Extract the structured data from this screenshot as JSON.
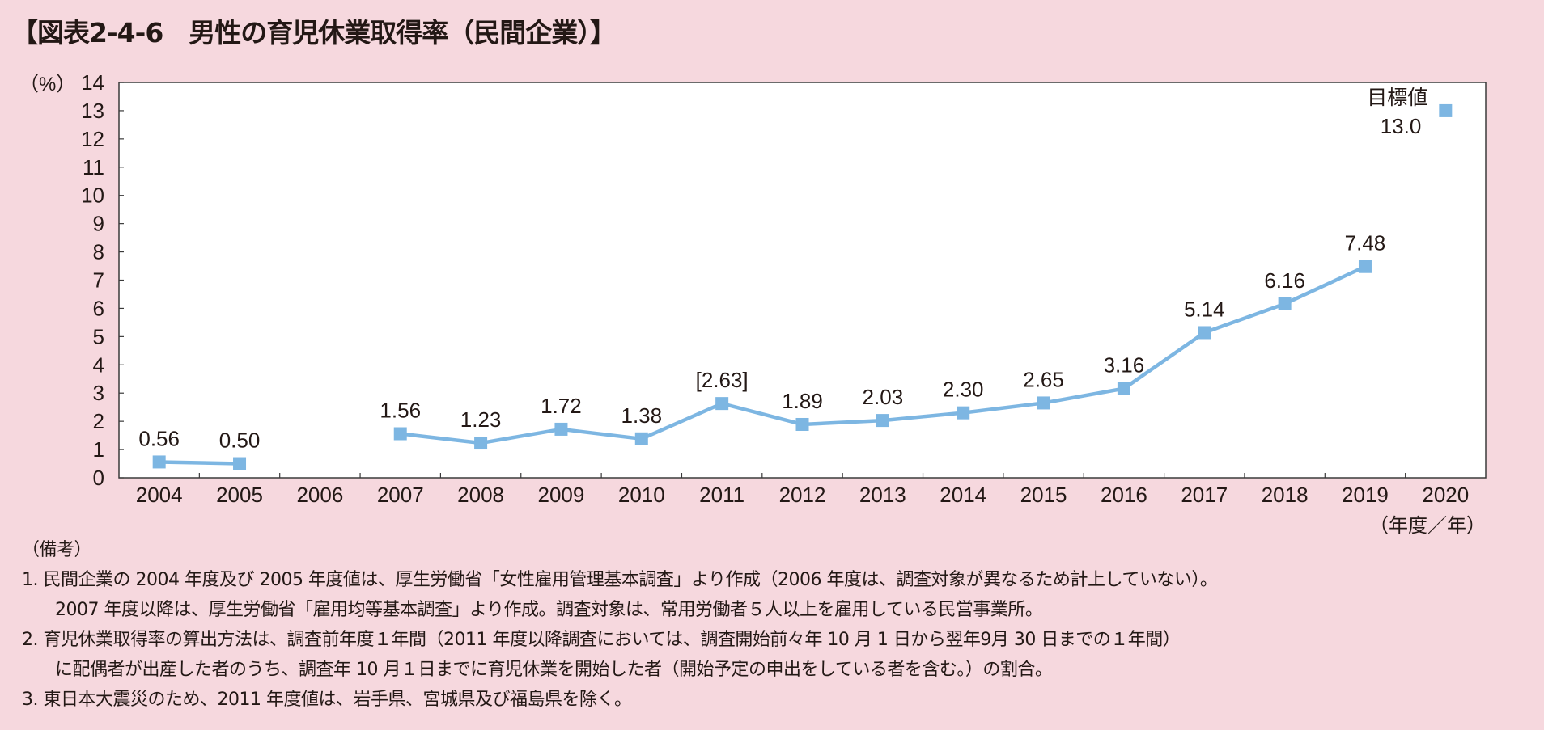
{
  "title": "【図表2-4-6　男性の育児休業取得率（民間企業）】",
  "chart_data": {
    "type": "line",
    "title": "男性の育児休業取得率（民間企業）",
    "ylabel": "（%）",
    "xlabel": "（年度／年）",
    "ylim": [
      0,
      14
    ],
    "yticks": [
      "0",
      "1",
      "2",
      "3",
      "4",
      "5",
      "6",
      "7",
      "8",
      "9",
      "10",
      "11",
      "12",
      "13",
      "14"
    ],
    "categories": [
      "2004",
      "2005",
      "2006",
      "2007",
      "2008",
      "2009",
      "2010",
      "2011",
      "2012",
      "2013",
      "2014",
      "2015",
      "2016",
      "2017",
      "2018",
      "2019",
      "2020"
    ],
    "series": [
      {
        "name": "男性の育児休業取得率",
        "color": "#7db6e2",
        "values": [
          0.56,
          0.5,
          null,
          1.56,
          1.23,
          1.72,
          1.38,
          2.63,
          1.89,
          2.03,
          2.3,
          2.65,
          3.16,
          5.14,
          6.16,
          7.48,
          null
        ],
        "labels": [
          "0.56",
          "0.50",
          "",
          "1.56",
          "1.23",
          "1.72",
          "1.38",
          "[2.63]",
          "1.89",
          "2.03",
          "2.30",
          "2.65",
          "3.16",
          "5.14",
          "6.16",
          "7.48",
          ""
        ]
      }
    ],
    "target": {
      "category": "2020",
      "value": 13.0,
      "label": "目標値",
      "value_label": "13.0"
    },
    "grid": false
  },
  "notes": {
    "heading": "（備考）",
    "lines": [
      "1. 民間企業の 2004 年度及び 2005 年度値は、厚生労働省「女性雇用管理基本調査」より作成（2006 年度は、調査対象が異なるため計上していない）。",
      "2007 年度以降は、厚生労働省「雇用均等基本調査」より作成。調査対象は、常用労働者５人以上を雇用している民営事業所。",
      "2. 育児休業取得率の算出方法は、調査前年度１年間（2011 年度以降調査においては、調査開始前々年 10 月 1 日から翌年9月 30 日までの１年間）",
      "に配偶者が出産した者のうち、調査年 10 月１日までに育児休業を開始した者（開始予定の申出をしている者を含む。）の割合。",
      "3. 東日本大震災のため、2011 年度値は、岩手県、宮城県及び福島県を除く。"
    ]
  }
}
